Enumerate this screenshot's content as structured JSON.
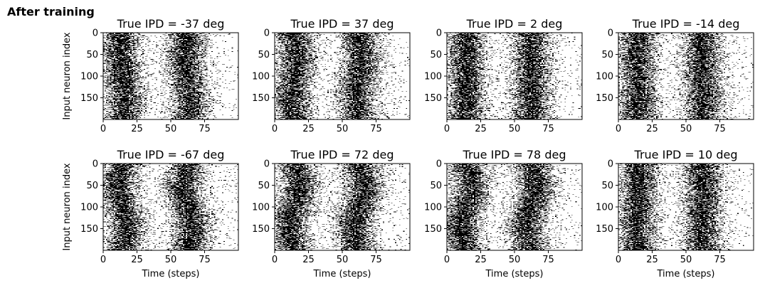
{
  "figure": {
    "suptitle": "After training"
  },
  "chart_data": {
    "type": "heatmap",
    "description_axes": {
      "xlabel": "Time (steps)",
      "ylabel": "Input neuron index",
      "xlim": [
        0,
        100
      ],
      "ylim": [
        200,
        0
      ],
      "xticks": [
        0,
        25,
        50,
        75
      ],
      "yticks": [
        0,
        50,
        100,
        150
      ]
    },
    "colormap": [
      "#ffffff",
      "#000000"
    ],
    "panels": [
      {
        "title": "True IPD = -37 deg",
        "ipd_deg": -37,
        "row": 0,
        "col": 0
      },
      {
        "title": "True IPD = 37 deg",
        "ipd_deg": 37,
        "row": 0,
        "col": 1
      },
      {
        "title": "True IPD = 2 deg",
        "ipd_deg": 2,
        "row": 0,
        "col": 2
      },
      {
        "title": "True IPD = -14 deg",
        "ipd_deg": -14,
        "row": 0,
        "col": 3
      },
      {
        "title": "True IPD = -67 deg",
        "ipd_deg": -67,
        "row": 1,
        "col": 0
      },
      {
        "title": "True IPD = 72 deg",
        "ipd_deg": 72,
        "row": 1,
        "col": 1
      },
      {
        "title": "True IPD = 78 deg",
        "ipd_deg": 78,
        "row": 1,
        "col": 2
      },
      {
        "title": "True IPD = 10 deg",
        "ipd_deg": 10,
        "row": 1,
        "col": 3
      }
    ]
  }
}
